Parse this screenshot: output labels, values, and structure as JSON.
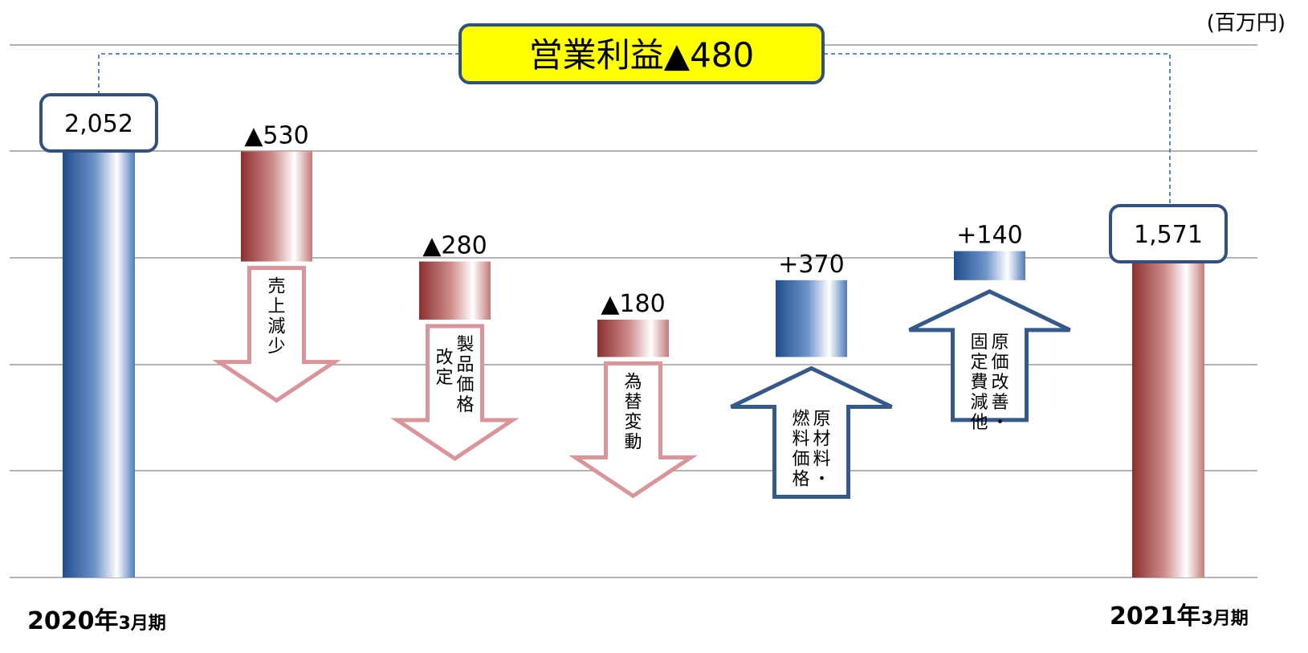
{
  "unit_label": "(百万円)",
  "summary_label": "営業利益▲480",
  "colors": {
    "increase": "#1f4e8c",
    "decrease": "#a33a3a",
    "arrow_up_stroke": "#355a8a",
    "arrow_down_stroke": "#d9959a",
    "summary_fill": "#ffff00"
  },
  "periods": [
    {
      "year": "2020年",
      "suffix": "3月期"
    },
    {
      "year": "2021年",
      "suffix": "3月期"
    }
  ],
  "chart_data": {
    "type": "bar",
    "subtype": "waterfall",
    "title": "",
    "unit": "百万円",
    "ylim": [
      0,
      2400
    ],
    "grid": true,
    "start": {
      "label": "2020年3月期",
      "value": 2052,
      "value_label": "2,052"
    },
    "end": {
      "label": "2021年3月期",
      "value": 1571,
      "value_label": "1,571"
    },
    "steps": [
      {
        "name": "売上減少",
        "value": -530,
        "value_label": "▲530",
        "arrow": "down"
      },
      {
        "name": "製品価格改定",
        "value": -280,
        "value_label": "▲280",
        "arrow": "down"
      },
      {
        "name": "為替変動",
        "value": -180,
        "value_label": "▲180",
        "arrow": "down"
      },
      {
        "name": "原材料・燃料価格",
        "value": 370,
        "value_label": "+370",
        "arrow": "up"
      },
      {
        "name": "原価改善・固定費減他",
        "value": 140,
        "value_label": "+140",
        "arrow": "up"
      }
    ],
    "total_change": {
      "label": "営業利益▲480",
      "value": -480
    }
  }
}
